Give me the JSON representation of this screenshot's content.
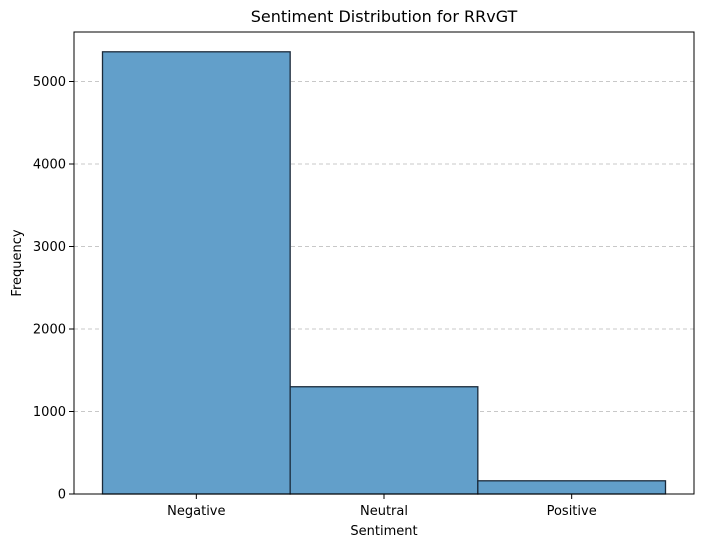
{
  "chart_data": {
    "type": "bar",
    "title": "Sentiment Distribution for RRvGT",
    "xlabel": "Sentiment",
    "ylabel": "Frequency",
    "categories": [
      "Negative",
      "Neutral",
      "Positive"
    ],
    "values": [
      5360,
      1300,
      160
    ],
    "ylim": [
      0,
      5600
    ],
    "yticks": [
      0,
      1000,
      2000,
      3000,
      4000,
      5000
    ],
    "ytick_labels": [
      "0",
      "1000",
      "2000",
      "3000",
      "4000",
      "5000"
    ],
    "grid": "y-dashed",
    "colors": {
      "bar_fill": "#629fca",
      "bar_edge": "#1a2a3a",
      "grid": "#c8c8c8"
    }
  }
}
